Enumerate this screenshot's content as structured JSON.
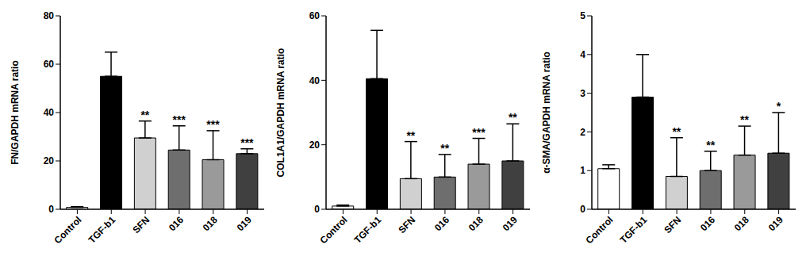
{
  "chart_data": [
    {
      "type": "bar",
      "ylabel": "FN/GAPDH mRNA ratio",
      "categories": [
        "Control",
        "TGF-b1",
        "SFN",
        "016",
        "018",
        "019"
      ],
      "values": [
        0.8,
        55,
        29.5,
        24.5,
        20.5,
        23
      ],
      "errors": [
        0.3,
        10,
        7,
        10,
        12,
        2
      ],
      "significance": [
        null,
        null,
        "**",
        "***",
        "***",
        "***"
      ],
      "colors": [
        "#ffffff",
        "#000000",
        "#d0d0d0",
        "#6e6e6e",
        "#9a9a9a",
        "#404040"
      ],
      "ylim": [
        0,
        80
      ],
      "yticks": [
        0,
        20,
        40,
        60,
        80
      ]
    },
    {
      "type": "bar",
      "ylabel": "COL1A1/GAPDH mRNA ratio",
      "categories": [
        "Control",
        "TGF-b1",
        "SFN",
        "016",
        "018",
        "019"
      ],
      "values": [
        1,
        40.5,
        9.5,
        10,
        14,
        15
      ],
      "errors": [
        0.3,
        15,
        11.5,
        7,
        8,
        11.5
      ],
      "significance": [
        null,
        null,
        "**",
        "**",
        "***",
        "**"
      ],
      "colors": [
        "#ffffff",
        "#000000",
        "#d0d0d0",
        "#6e6e6e",
        "#9a9a9a",
        "#404040"
      ],
      "ylim": [
        0,
        60
      ],
      "yticks": [
        0,
        20,
        40,
        60
      ]
    },
    {
      "type": "bar",
      "ylabel": "α-SMA/GAPDH mRNA ratio",
      "categories": [
        "Control",
        "TGF-b1",
        "SFN",
        "016",
        "018",
        "019"
      ],
      "values": [
        1.05,
        2.9,
        0.85,
        1.0,
        1.4,
        1.45
      ],
      "errors": [
        0.1,
        1.1,
        1.0,
        0.5,
        0.75,
        1.05
      ],
      "significance": [
        null,
        null,
        "**",
        "**",
        "**",
        "*"
      ],
      "colors": [
        "#ffffff",
        "#000000",
        "#d0d0d0",
        "#6e6e6e",
        "#9a9a9a",
        "#404040"
      ],
      "ylim": [
        0,
        5
      ],
      "yticks": [
        0,
        1,
        2,
        3,
        4,
        5
      ]
    }
  ]
}
